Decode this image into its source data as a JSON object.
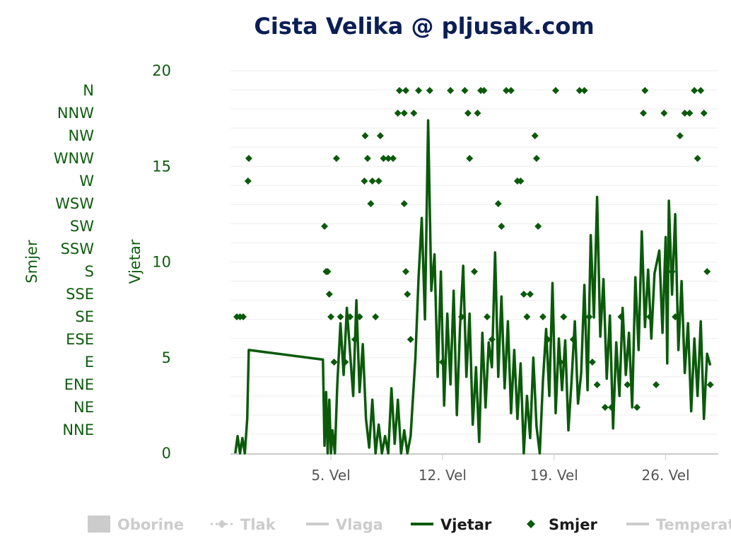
{
  "chart_data": {
    "type": "line",
    "title": "Cista Velika @ pljusak.com",
    "y_axes": [
      {
        "id": "vjetar",
        "title": "Vjetar",
        "ticks": [
          "0",
          "5",
          "10",
          "15",
          "20"
        ],
        "ylim": [
          0,
          20
        ]
      },
      {
        "id": "smjer",
        "title": "Smjer",
        "ticks": [
          "NNE",
          "NE",
          "ENE",
          "E",
          "ESE",
          "SE",
          "SSE",
          "S",
          "SSW",
          "SW",
          "WSW",
          "W",
          "WNW",
          "NW",
          "NNW",
          "N"
        ]
      }
    ],
    "x_axis": {
      "ticks": [
        "5. Vel",
        "12. Vel",
        "19. Vel",
        "26. Vel"
      ],
      "tick_days": [
        5,
        12,
        19,
        26
      ],
      "xlim": [
        -1.3,
        29.3
      ]
    },
    "series": [
      {
        "name": "Vjetar",
        "type": "line",
        "color": "#0a5a0a",
        "points": [
          [
            -1,
            0
          ],
          [
            -0.85,
            0.9
          ],
          [
            -0.7,
            0
          ],
          [
            -0.55,
            0.8
          ],
          [
            -0.4,
            0
          ],
          [
            -0.25,
            1.8
          ],
          [
            -0.15,
            5.4
          ],
          [
            4.5,
            4.9
          ],
          [
            4.6,
            0.4
          ],
          [
            4.7,
            3.2
          ],
          [
            4.8,
            0
          ],
          [
            4.9,
            2.8
          ],
          [
            5.0,
            0
          ],
          [
            5.1,
            1.2
          ],
          [
            5.25,
            0
          ],
          [
            5.4,
            3.6
          ],
          [
            5.6,
            6.8
          ],
          [
            5.8,
            4.1
          ],
          [
            6.0,
            7.6
          ],
          [
            6.2,
            5.3
          ],
          [
            6.4,
            3.0
          ],
          [
            6.6,
            8.0
          ],
          [
            6.8,
            3.2
          ],
          [
            7.0,
            5.7
          ],
          [
            7.2,
            1.8
          ],
          [
            7.4,
            0.3
          ],
          [
            7.6,
            2.8
          ],
          [
            7.8,
            0
          ],
          [
            8.0,
            1.5
          ],
          [
            8.2,
            0
          ],
          [
            8.4,
            0.9
          ],
          [
            8.6,
            0
          ],
          [
            8.8,
            3.4
          ],
          [
            9.0,
            0.5
          ],
          [
            9.2,
            2.8
          ],
          [
            9.4,
            0
          ],
          [
            9.6,
            1.2
          ],
          [
            9.8,
            0
          ],
          [
            10.0,
            0.9
          ],
          [
            10.3,
            5.0
          ],
          [
            10.5,
            9.2
          ],
          [
            10.7,
            12.3
          ],
          [
            10.9,
            7.0
          ],
          [
            11.1,
            17.4
          ],
          [
            11.3,
            8.5
          ],
          [
            11.5,
            10.4
          ],
          [
            11.7,
            4.0
          ],
          [
            11.9,
            9.5
          ],
          [
            12.1,
            2.5
          ],
          [
            12.3,
            7.3
          ],
          [
            12.5,
            3.6
          ],
          [
            12.7,
            8.5
          ],
          [
            12.9,
            2.0
          ],
          [
            13.1,
            6.6
          ],
          [
            13.3,
            9.8
          ],
          [
            13.5,
            4.0
          ],
          [
            13.7,
            7.3
          ],
          [
            13.9,
            1.5
          ],
          [
            14.1,
            4.5
          ],
          [
            14.3,
            0.6
          ],
          [
            14.5,
            6.3
          ],
          [
            14.7,
            2.4
          ],
          [
            14.9,
            5.8
          ],
          [
            15.1,
            4.5
          ],
          [
            15.3,
            10.5
          ],
          [
            15.5,
            4.0
          ],
          [
            15.7,
            8.2
          ],
          [
            15.9,
            3.4
          ],
          [
            16.1,
            6.9
          ],
          [
            16.3,
            2.1
          ],
          [
            16.5,
            5.4
          ],
          [
            16.7,
            1.8
          ],
          [
            16.9,
            4.7
          ],
          [
            17.1,
            0
          ],
          [
            17.3,
            3.0
          ],
          [
            17.5,
            0.8
          ],
          [
            17.7,
            5.0
          ],
          [
            17.9,
            1.4
          ],
          [
            18.1,
            0
          ],
          [
            18.3,
            3.8
          ],
          [
            18.5,
            6.5
          ],
          [
            18.7,
            3.0
          ],
          [
            18.9,
            8.9
          ],
          [
            19.1,
            2.1
          ],
          [
            19.3,
            6.0
          ],
          [
            19.5,
            3.3
          ],
          [
            19.7,
            5.9
          ],
          [
            19.9,
            1.2
          ],
          [
            20.1,
            3.8
          ],
          [
            20.3,
            6.9
          ],
          [
            20.5,
            2.6
          ],
          [
            20.7,
            4.2
          ],
          [
            20.9,
            8.8
          ],
          [
            21.1,
            3.3
          ],
          [
            21.3,
            11.4
          ],
          [
            21.5,
            7.1
          ],
          [
            21.7,
            13.4
          ],
          [
            21.9,
            6.1
          ],
          [
            22.1,
            9.1
          ],
          [
            22.3,
            3.9
          ],
          [
            22.5,
            7.2
          ],
          [
            22.7,
            1.3
          ],
          [
            22.9,
            5.8
          ],
          [
            23.1,
            3.0
          ],
          [
            23.3,
            7.6
          ],
          [
            23.5,
            4.1
          ],
          [
            23.7,
            6.3
          ],
          [
            23.9,
            2.4
          ],
          [
            24.1,
            9.2
          ],
          [
            24.3,
            5.4
          ],
          [
            24.5,
            11.6
          ],
          [
            24.7,
            6.6
          ],
          [
            24.9,
            9.6
          ],
          [
            25.1,
            6.0
          ],
          [
            25.3,
            9.4
          ],
          [
            25.6,
            10.6
          ],
          [
            25.8,
            6.3
          ],
          [
            26.0,
            11.3
          ],
          [
            26.1,
            4.7
          ],
          [
            26.2,
            13.2
          ],
          [
            26.4,
            8.3
          ],
          [
            26.6,
            12.5
          ],
          [
            26.8,
            5.4
          ],
          [
            27.0,
            9.0
          ],
          [
            27.2,
            4.2
          ],
          [
            27.4,
            6.8
          ],
          [
            27.6,
            2.2
          ],
          [
            27.8,
            6.0
          ],
          [
            28.0,
            3.0
          ],
          [
            28.2,
            6.9
          ],
          [
            28.4,
            1.8
          ],
          [
            28.6,
            5.2
          ],
          [
            28.8,
            4.6
          ]
        ]
      },
      {
        "name": "Smjer",
        "type": "scatter",
        "color": "#0a5a0a",
        "points": [
          [
            -0.9,
            "SE"
          ],
          [
            -0.7,
            "SE"
          ],
          [
            -0.5,
            "SE"
          ],
          [
            -0.2,
            "W"
          ],
          [
            -0.15,
            "WNW"
          ],
          [
            4.6,
            "SW"
          ],
          [
            4.7,
            "S"
          ],
          [
            4.8,
            "S"
          ],
          [
            4.9,
            "SSE"
          ],
          [
            5.0,
            "SE"
          ],
          [
            5.2,
            "E"
          ],
          [
            5.35,
            "WNW"
          ],
          [
            5.6,
            "SE"
          ],
          [
            5.9,
            "E"
          ],
          [
            6.2,
            "SE"
          ],
          [
            6.5,
            "ESE"
          ],
          [
            6.8,
            "SE"
          ],
          [
            7.1,
            "W"
          ],
          [
            7.15,
            "NW"
          ],
          [
            7.3,
            "WNW"
          ],
          [
            7.5,
            "WSW"
          ],
          [
            7.6,
            "W"
          ],
          [
            7.8,
            "SE"
          ],
          [
            8.0,
            "W"
          ],
          [
            8.1,
            "NW"
          ],
          [
            8.3,
            "WNW"
          ],
          [
            8.6,
            "WNW"
          ],
          [
            8.9,
            "WNW"
          ],
          [
            9.2,
            "NNW"
          ],
          [
            9.3,
            "N"
          ],
          [
            9.6,
            "NNW"
          ],
          [
            9.7,
            "N"
          ],
          [
            10.2,
            "NNW"
          ],
          [
            10.5,
            "N"
          ],
          [
            9.6,
            "WSW"
          ],
          [
            9.7,
            "S"
          ],
          [
            9.8,
            "SSE"
          ],
          [
            10.0,
            "ESE"
          ],
          [
            11.2,
            "N"
          ],
          [
            12.0,
            "E"
          ],
          [
            12.5,
            "N"
          ],
          [
            13.2,
            "SE"
          ],
          [
            13.4,
            "N"
          ],
          [
            13.6,
            "NNW"
          ],
          [
            13.7,
            "WNW"
          ],
          [
            14.0,
            "S"
          ],
          [
            14.2,
            "NNW"
          ],
          [
            14.4,
            "N"
          ],
          [
            14.6,
            "N"
          ],
          [
            14.8,
            "SE"
          ],
          [
            15.1,
            "ESE"
          ],
          [
            15.5,
            "WSW"
          ],
          [
            15.7,
            "SW"
          ],
          [
            16.0,
            "N"
          ],
          [
            16.3,
            "N"
          ],
          [
            16.7,
            "W"
          ],
          [
            16.9,
            "W"
          ],
          [
            17.1,
            "SSE"
          ],
          [
            17.3,
            "SE"
          ],
          [
            17.5,
            "SSE"
          ],
          [
            17.8,
            "NW"
          ],
          [
            17.9,
            "WNW"
          ],
          [
            18.0,
            "SW"
          ],
          [
            18.3,
            "SE"
          ],
          [
            18.6,
            "ESE"
          ],
          [
            19.1,
            "N"
          ],
          [
            19.4,
            "E"
          ],
          [
            19.6,
            "SE"
          ],
          [
            20.2,
            "ESE"
          ],
          [
            20.6,
            "N"
          ],
          [
            20.9,
            "N"
          ],
          [
            21.2,
            "SE"
          ],
          [
            21.4,
            "E"
          ],
          [
            21.7,
            "ENE"
          ],
          [
            22.2,
            "NE"
          ],
          [
            22.6,
            "NE"
          ],
          [
            23.2,
            "SE"
          ],
          [
            23.6,
            "ENE"
          ],
          [
            24.2,
            "NE"
          ],
          [
            24.6,
            "NNW"
          ],
          [
            24.7,
            "N"
          ],
          [
            25.0,
            "SE"
          ],
          [
            25.4,
            "ENE"
          ],
          [
            25.9,
            "NNW"
          ],
          [
            26.4,
            "S"
          ],
          [
            26.6,
            "SE"
          ],
          [
            26.9,
            "NW"
          ],
          [
            27.2,
            "NNW"
          ],
          [
            27.5,
            "NNW"
          ],
          [
            27.8,
            "N"
          ],
          [
            28.0,
            "WNW"
          ],
          [
            28.2,
            "N"
          ],
          [
            28.4,
            "NNW"
          ],
          [
            28.6,
            "S"
          ],
          [
            28.8,
            "ENE"
          ]
        ]
      }
    ],
    "legend": {
      "placement": "bottom",
      "items": [
        {
          "label": "Oborine",
          "active": false,
          "symbol": "box"
        },
        {
          "label": "Tlak",
          "active": false,
          "symbol": "dash-diamond"
        },
        {
          "label": "Vlaga",
          "active": false,
          "symbol": "line"
        },
        {
          "label": "Vjetar",
          "active": true,
          "symbol": "line"
        },
        {
          "label": "Smjer",
          "active": true,
          "symbol": "diamond"
        },
        {
          "label": "Temperat",
          "active": false,
          "symbol": "line"
        }
      ]
    },
    "grid": true,
    "colors": {
      "active": "#0a5a0a",
      "inactive": "#cccccc",
      "title": "#0b1e55",
      "grid": "#eeeeee",
      "axis": "#cccccc"
    }
  }
}
